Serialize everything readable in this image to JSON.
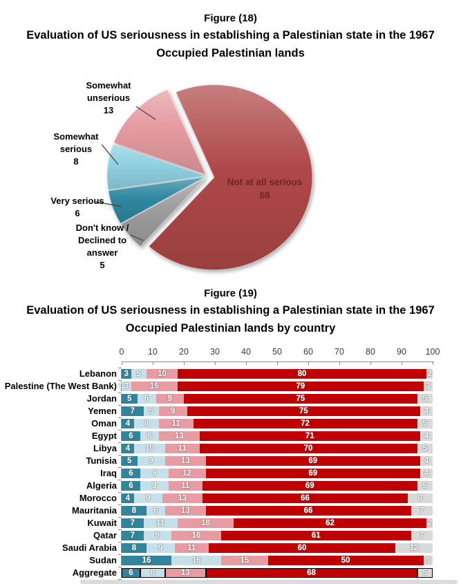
{
  "chart_data": [
    {
      "type": "pie",
      "figure_label": "Figure (18)",
      "title": "Evaluation of US seriousness in establishing a Palestinian state in the 1967 Occupied Palestinian lands",
      "title_lines": [
        "Evaluation of US seriousness in establishing a Palestinian state in the 1967",
        "Occupied Palestinian lands"
      ],
      "legend": "none",
      "labels": "callouts-with-values",
      "draw_order": "clockwise-from-top",
      "start_angle_deg": 337,
      "slices": [
        {
          "label": "Not at all serious",
          "value": 68,
          "color": "#AF4848",
          "label_style": "inside",
          "label_lines": [
            "Not at all serious",
            "68"
          ]
        },
        {
          "label": "Don't know / Declined to answer",
          "value": 5,
          "color": "#9D9D9D",
          "label_style": "callout",
          "label_lines": [
            "Don't know /",
            "Declined to",
            "answer",
            "5"
          ]
        },
        {
          "label": "Very serious",
          "value": 6,
          "color": "#2F87A0",
          "label_style": "callout",
          "label_lines": [
            "Very serious",
            "6"
          ]
        },
        {
          "label": "Somewhat serious",
          "value": 8,
          "color": "#8FD0E2",
          "label_style": "callout",
          "label_lines": [
            "Somewhat",
            "serious",
            "8"
          ]
        },
        {
          "label": "Somewhat unserious",
          "value": 13,
          "color": "#E49BA0",
          "label_style": "callout",
          "label_lines": [
            "Somewhat",
            "unserious",
            "13"
          ]
        }
      ]
    },
    {
      "type": "bar",
      "variant": "horizontal-stacked",
      "figure_label": "Figure (19)",
      "title": "Evaluation of US seriousness in establishing a Palestinian state in the 1967 Occupied Palestinian lands by country",
      "title_lines": [
        "Evaluation of US seriousness in establishing a Palestinian state in the 1967",
        "Occupied Palestinian lands by country"
      ],
      "axis": {
        "position": "top",
        "min": 0,
        "max": 100,
        "tick_interval": 10,
        "tick_labels": [
          "0",
          "10",
          "20",
          "30",
          "40",
          "50",
          "60",
          "70",
          "80",
          "90",
          "100"
        ]
      },
      "series": [
        {
          "name": "Very serious",
          "color": "#31849B"
        },
        {
          "name": "Somewhat serious",
          "color": "#C5E0EA"
        },
        {
          "name": "Somewhat unserious",
          "color": "#E79CA3"
        },
        {
          "name": "Not at all serious",
          "color": "#C00000"
        },
        {
          "name": "Don't know / Declined to answer",
          "color": "#D9D9D9"
        }
      ],
      "rows": [
        {
          "country": "Lebanon",
          "values": [
            3,
            5,
            10,
            80,
            2
          ]
        },
        {
          "country": "Palestine (The West Bank)",
          "values": [
            0,
            3,
            15,
            79,
            3
          ]
        },
        {
          "country": "Jordan",
          "values": [
            5,
            6,
            9,
            75,
            5
          ]
        },
        {
          "country": "Yemen",
          "values": [
            7,
            5,
            9,
            75,
            4
          ]
        },
        {
          "country": "Oman",
          "values": [
            4,
            8,
            11,
            72,
            5
          ]
        },
        {
          "country": "Egypt",
          "values": [
            6,
            6,
            13,
            71,
            4
          ]
        },
        {
          "country": "Libya",
          "values": [
            4,
            10,
            11,
            70,
            5
          ]
        },
        {
          "country": "Tunisia",
          "values": [
            5,
            9,
            13,
            69,
            4
          ]
        },
        {
          "country": "Iraq",
          "values": [
            6,
            9,
            12,
            69,
            4
          ]
        },
        {
          "country": "Algeria",
          "values": [
            6,
            9,
            11,
            69,
            5
          ]
        },
        {
          "country": "Morocco",
          "values": [
            4,
            9,
            13,
            66,
            8
          ]
        },
        {
          "country": "Mauritania",
          "values": [
            8,
            6,
            13,
            66,
            7
          ]
        },
        {
          "country": "Kuwait",
          "values": [
            7,
            11,
            18,
            62,
            2
          ]
        },
        {
          "country": "Qatar",
          "values": [
            7,
            9,
            16,
            61,
            7
          ]
        },
        {
          "country": "Saudi Arabia",
          "values": [
            8,
            9,
            11,
            60,
            12
          ]
        },
        {
          "country": "Sudan",
          "values": [
            16,
            16,
            15,
            50,
            3
          ]
        },
        {
          "country": "Aggregate",
          "values": [
            6,
            8,
            13,
            68,
            5
          ],
          "highlight": true
        }
      ]
    }
  ]
}
